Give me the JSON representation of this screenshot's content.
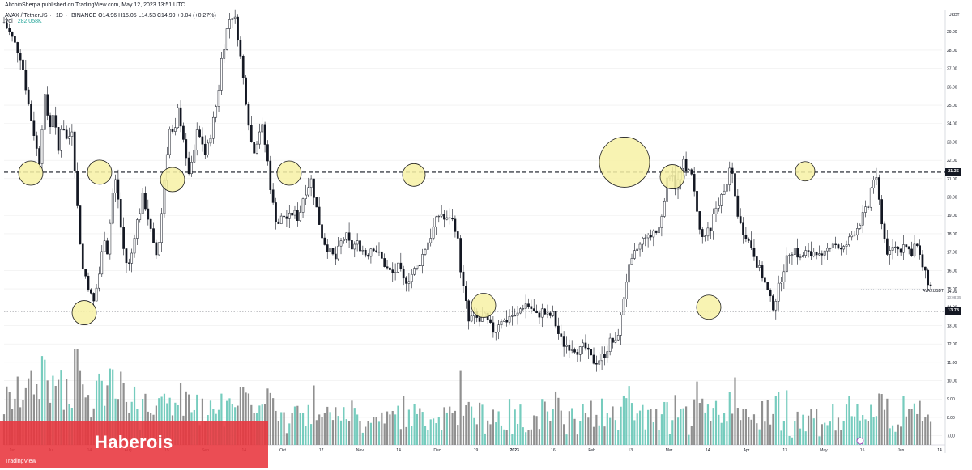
{
  "header": {
    "publisher_line": "AltcoinSherpa published on TradingView.com, May 12, 2023 13:51 UTC"
  },
  "legend": {
    "symbol": "AVAX / TetherUS",
    "interval": "1D",
    "exchange": "BINANCE",
    "open": "O14.96",
    "high": "H15.05",
    "low": "L14.53",
    "close": "C14.99",
    "change": "+0.04 (+0.27%)",
    "volume_label": "Vol",
    "volume_value": "282.058K"
  },
  "watermark": {
    "text": "Haberois",
    "logo_text": "TradingView"
  },
  "price_axis": {
    "unit": "USDT",
    "symbol_label": "AVAXUSDT",
    "last_price": "14.99",
    "countdown": "10:08:35",
    "resistance_tag": "21.35",
    "support_tag": "13.78"
  },
  "colors": {
    "candle": "#131722",
    "volume_up": "#5ec3b3",
    "volume_down": "#7c7c7c",
    "circle_fill": "#f7f1a5",
    "circle_stroke": "#1f1f1f",
    "watermark_bg": "#e8343c",
    "grid": "#eeeeee"
  },
  "chart_data": {
    "type": "candlestick",
    "symbol": "AVAXUSDT",
    "interval": "1D",
    "ylim": [
      6.5,
      30.2
    ],
    "grid": true,
    "y_ticks": [
      "29.00",
      "28.00",
      "27.00",
      "26.00",
      "25.00",
      "24.00",
      "23.00",
      "22.00",
      "21.00",
      "20.00",
      "19.00",
      "18.00",
      "17.00",
      "16.00",
      "15.00",
      "14.00",
      "13.00",
      "12.00",
      "11.00",
      "10.00",
      "9.00",
      "8.00",
      "7.00"
    ],
    "x_labels": [
      "Jun",
      "Jul",
      "14",
      "Aug",
      "15",
      "Sep",
      "14",
      "Oct",
      "17",
      "Nov",
      "14",
      "Dec",
      "19",
      "2023",
      "16",
      "Feb",
      "13",
      "Mar",
      "14",
      "Apr",
      "17",
      "May",
      "15",
      "Jun",
      "14"
    ],
    "horizontal_lines": [
      {
        "price": 21.35,
        "style": "dashed"
      },
      {
        "price": 13.78,
        "style": "dotted"
      }
    ],
    "highlight_circles": [
      {
        "price": 21.3,
        "label_index": 0
      },
      {
        "price": 21.35,
        "label_index": 1
      },
      {
        "price": 13.7,
        "label_index": 2
      },
      {
        "price": 20.95,
        "label_index": 3
      },
      {
        "price": 21.3,
        "label_index": 4
      },
      {
        "price": 21.2,
        "label_index": 5
      },
      {
        "price": 14.1,
        "label_index": 6
      },
      {
        "price": 21.9,
        "label_index": 7
      },
      {
        "price": 21.1,
        "label_index": 8
      },
      {
        "price": 14.0,
        "label_index": 9
      },
      {
        "price": 21.4,
        "label_index": 10
      }
    ],
    "price_path": [
      [
        0,
        29.5
      ],
      [
        10,
        28.6
      ],
      [
        20,
        27.5
      ],
      [
        28,
        25.0
      ],
      [
        34,
        23.5
      ],
      [
        40,
        21.8
      ],
      [
        46,
        25.5
      ],
      [
        52,
        23.8
      ],
      [
        56,
        24.6
      ],
      [
        62,
        22.5
      ],
      [
        66,
        24.2
      ],
      [
        72,
        23.0
      ],
      [
        78,
        23.8
      ],
      [
        82,
        20.5
      ],
      [
        86,
        18.0
      ],
      [
        90,
        16.0
      ],
      [
        94,
        15.6
      ],
      [
        98,
        14.8
      ],
      [
        102,
        14.2
      ],
      [
        106,
        15.2
      ],
      [
        110,
        16.2
      ],
      [
        114,
        18.0
      ],
      [
        118,
        17.0
      ],
      [
        122,
        19.2
      ],
      [
        126,
        21.2
      ],
      [
        130,
        20.0
      ],
      [
        134,
        18.0
      ],
      [
        138,
        16.6
      ],
      [
        142,
        16.2
      ],
      [
        146,
        17.0
      ],
      [
        150,
        18.4
      ],
      [
        154,
        19.0
      ],
      [
        158,
        20.0
      ],
      [
        162,
        19.4
      ],
      [
        166,
        18.5
      ],
      [
        170,
        17.4
      ],
      [
        174,
        16.8
      ],
      [
        178,
        18.0
      ],
      [
        182,
        20.5
      ],
      [
        186,
        22.5
      ],
      [
        190,
        24.0
      ],
      [
        194,
        23.0
      ],
      [
        198,
        24.8
      ],
      [
        204,
        23.5
      ],
      [
        208,
        21.8
      ],
      [
        212,
        21.2
      ],
      [
        216,
        22.2
      ],
      [
        220,
        23.5
      ],
      [
        226,
        23.0
      ],
      [
        230,
        22.2
      ],
      [
        236,
        23.5
      ],
      [
        240,
        24.5
      ],
      [
        244,
        25.5
      ],
      [
        248,
        27.5
      ],
      [
        252,
        28.5
      ],
      [
        256,
        29.6
      ],
      [
        262,
        30.0
      ],
      [
        266,
        29.0
      ],
      [
        270,
        27.5
      ],
      [
        274,
        26.0
      ],
      [
        278,
        24.5
      ],
      [
        282,
        23.0
      ],
      [
        286,
        22.5
      ],
      [
        290,
        23.5
      ],
      [
        294,
        23.9
      ],
      [
        300,
        22.2
      ],
      [
        304,
        20.5
      ],
      [
        308,
        19.2
      ],
      [
        312,
        18.5
      ],
      [
        318,
        19.0
      ],
      [
        324,
        18.8
      ],
      [
        330,
        19.2
      ],
      [
        336,
        18.8
      ],
      [
        342,
        20.2
      ],
      [
        346,
        20.5
      ],
      [
        350,
        21.0
      ],
      [
        354,
        20.0
      ],
      [
        358,
        19.0
      ],
      [
        362,
        18.0
      ],
      [
        366,
        17.5
      ],
      [
        372,
        17.0
      ],
      [
        378,
        16.6
      ],
      [
        384,
        17.5
      ],
      [
        390,
        17.9
      ],
      [
        396,
        17.2
      ],
      [
        402,
        17.5
      ],
      [
        408,
        17.2
      ],
      [
        414,
        16.8
      ],
      [
        420,
        17.4
      ],
      [
        426,
        17.0
      ],
      [
        432,
        16.5
      ],
      [
        438,
        16.0
      ],
      [
        444,
        15.8
      ],
      [
        450,
        16.2
      ],
      [
        456,
        15.4
      ],
      [
        462,
        15.6
      ],
      [
        468,
        16.0
      ],
      [
        474,
        16.4
      ],
      [
        480,
        17.2
      ],
      [
        486,
        17.8
      ],
      [
        492,
        18.6
      ],
      [
        498,
        19.2
      ],
      [
        504,
        18.6
      ],
      [
        508,
        19.0
      ],
      [
        514,
        18.5
      ],
      [
        518,
        17.5
      ],
      [
        522,
        15.5
      ],
      [
        526,
        14.5
      ],
      [
        530,
        13.2
      ],
      [
        536,
        13.6
      ],
      [
        542,
        13.2
      ],
      [
        548,
        13.5
      ],
      [
        554,
        13.0
      ],
      [
        560,
        12.6
      ],
      [
        566,
        13.4
      ],
      [
        572,
        13.2
      ],
      [
        578,
        13.6
      ],
      [
        584,
        13.4
      ],
      [
        590,
        14.0
      ],
      [
        596,
        14.2
      ],
      [
        602,
        13.9
      ],
      [
        608,
        13.5
      ],
      [
        614,
        13.8
      ],
      [
        620,
        13.5
      ],
      [
        626,
        13.6
      ],
      [
        632,
        12.6
      ],
      [
        638,
        12.0
      ],
      [
        644,
        11.9
      ],
      [
        650,
        11.8
      ],
      [
        656,
        11.6
      ],
      [
        662,
        11.9
      ],
      [
        668,
        11.3
      ],
      [
        674,
        11.0
      ],
      [
        680,
        11.2
      ],
      [
        686,
        11.5
      ],
      [
        692,
        12.2
      ],
      [
        698,
        12.0
      ],
      [
        704,
        13.5
      ],
      [
        708,
        15.0
      ],
      [
        712,
        16.0
      ],
      [
        716,
        16.4
      ],
      [
        720,
        17.0
      ],
      [
        726,
        17.4
      ],
      [
        732,
        18.0
      ],
      [
        736,
        17.6
      ],
      [
        740,
        18.2
      ],
      [
        746,
        18.0
      ],
      [
        750,
        19.0
      ],
      [
        754,
        20.2
      ],
      [
        758,
        21.2
      ],
      [
        762,
        21.5
      ],
      [
        766,
        20.5
      ],
      [
        770,
        21.0
      ],
      [
        774,
        22.0
      ],
      [
        778,
        21.3
      ],
      [
        782,
        21.8
      ],
      [
        786,
        20.5
      ],
      [
        790,
        19.6
      ],
      [
        794,
        18.0
      ],
      [
        798,
        17.7
      ],
      [
        802,
        18.1
      ],
      [
        806,
        18.0
      ],
      [
        810,
        19.2
      ],
      [
        814,
        19.6
      ],
      [
        818,
        20.0
      ],
      [
        822,
        20.2
      ],
      [
        826,
        21.2
      ],
      [
        830,
        21.5
      ],
      [
        834,
        20.0
      ],
      [
        838,
        18.8
      ],
      [
        842,
        18.2
      ],
      [
        846,
        18.0
      ],
      [
        850,
        17.5
      ],
      [
        854,
        17.2
      ],
      [
        858,
        16.5
      ],
      [
        862,
        16.0
      ],
      [
        866,
        15.6
      ],
      [
        870,
        15.0
      ],
      [
        874,
        14.4
      ],
      [
        878,
        14.0
      ],
      [
        882,
        14.8
      ],
      [
        886,
        15.5
      ],
      [
        890,
        16.2
      ],
      [
        896,
        17.0
      ],
      [
        902,
        17.2
      ],
      [
        908,
        16.6
      ],
      [
        914,
        17.0
      ],
      [
        920,
        16.8
      ],
      [
        926,
        17.2
      ],
      [
        932,
        16.5
      ],
      [
        938,
        17.0
      ],
      [
        944,
        17.6
      ],
      [
        950,
        17.4
      ],
      [
        956,
        17.0
      ],
      [
        962,
        17.5
      ],
      [
        968,
        18.0
      ],
      [
        974,
        18.4
      ],
      [
        980,
        19.0
      ],
      [
        986,
        19.5
      ],
      [
        990,
        20.8
      ],
      [
        994,
        21.2
      ],
      [
        998,
        19.8
      ],
      [
        1002,
        18.5
      ],
      [
        1006,
        17.2
      ],
      [
        1010,
        16.8
      ],
      [
        1016,
        17.4
      ],
      [
        1022,
        17.0
      ],
      [
        1026,
        17.6
      ],
      [
        1030,
        17.2
      ],
      [
        1036,
        17.0
      ],
      [
        1040,
        17.6
      ],
      [
        1044,
        16.8
      ],
      [
        1048,
        16.2
      ],
      [
        1052,
        15.6
      ],
      [
        1056,
        15.2
      ],
      [
        1060,
        14.99
      ]
    ],
    "volume_scale": [
      0,
      1
    ]
  }
}
